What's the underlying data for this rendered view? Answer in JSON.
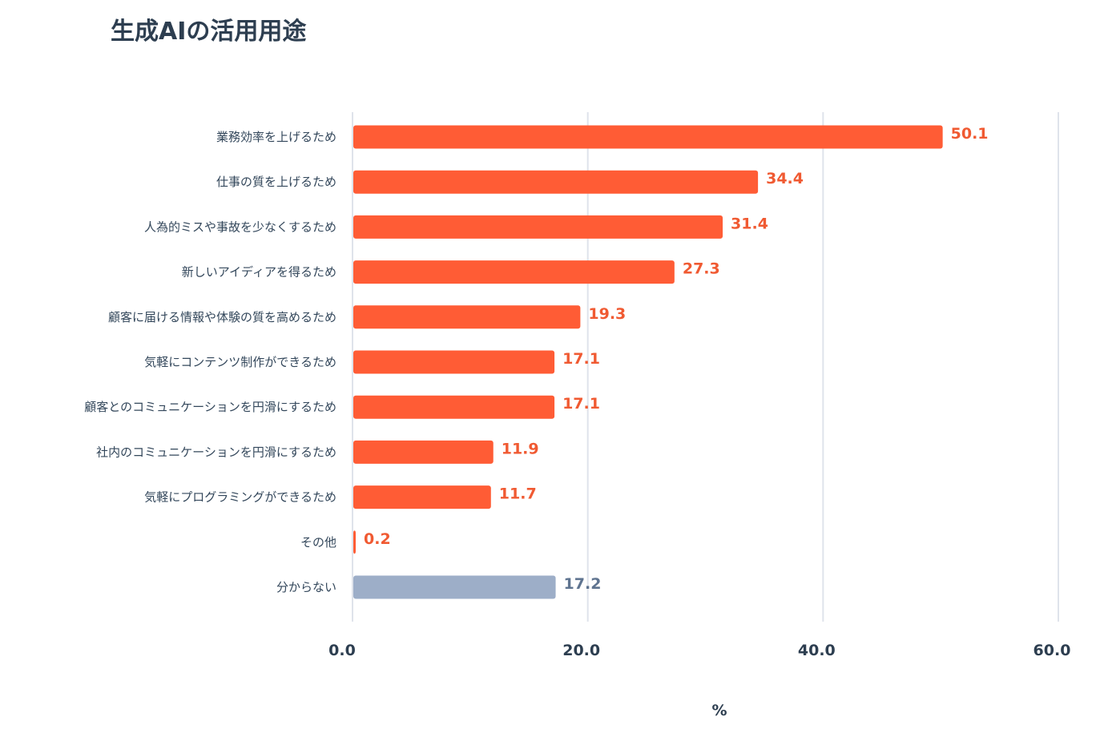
{
  "chart_data": {
    "type": "bar",
    "orientation": "horizontal",
    "title": "生成AIの活用用途",
    "xlabel": "%",
    "ylabel": "",
    "xlim": [
      0,
      60
    ],
    "xticks": [
      "0.0",
      "20.0",
      "40.0",
      "60.0"
    ],
    "grid": true,
    "categories": [
      "業務効率を上げるため",
      "仕事の質を上げるため",
      "人為的ミスや事故を少なくするため",
      "新しいアイディアを得るため",
      "顧客に届ける情報や体験の質を高めるため",
      "気軽にコンテンツ制作ができるため",
      "顧客とのコミュニケーションを円滑にするため",
      "社内のコミュニケーションを円滑にするため",
      "気軽にプログラミングができるため",
      "その他",
      "分からない"
    ],
    "values": [
      50.1,
      34.4,
      31.4,
      27.3,
      19.3,
      17.1,
      17.1,
      11.9,
      11.7,
      0.2,
      17.2
    ],
    "value_labels": [
      "50.1",
      "34.4",
      "31.4",
      "27.3",
      "19.3",
      "17.1",
      "17.1",
      "11.9",
      "11.7",
      "0.2",
      "17.2"
    ],
    "colors": {
      "primary": "#ff5c35",
      "muted": "#9daec8",
      "primary_label": "#f05a32",
      "muted_label": "#5f7490",
      "grid": "#dfe3eb"
    },
    "muted_categories": [
      "分からない"
    ]
  }
}
